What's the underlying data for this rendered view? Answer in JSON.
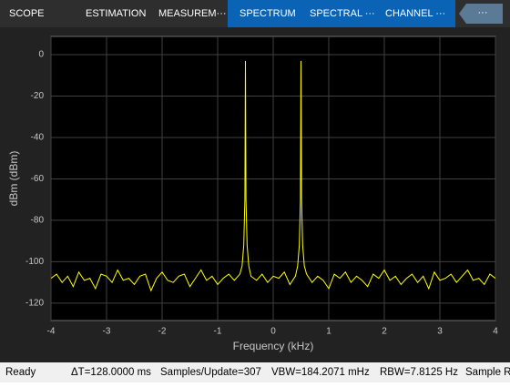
{
  "toolbar": {
    "tabs": [
      "SCOPE",
      "ESTIMATION",
      "MEASUREM···",
      "SPECTRUM",
      "SPECTRAL ···",
      "CHANNEL ···"
    ],
    "more": "···"
  },
  "chart_data": {
    "type": "line",
    "xlabel": "Frequency (kHz)",
    "ylabel": "dBm (dBm)",
    "xlim": [
      -4,
      4
    ],
    "ylim": [
      -128.4,
      8.8
    ],
    "xticks": [
      -4,
      -3,
      -2,
      -1,
      0,
      1,
      2,
      3,
      4
    ],
    "yticks": [
      0,
      -20,
      -40,
      -60,
      -80,
      -100,
      -120
    ],
    "grid": true,
    "series": [
      {
        "color": "#ffff00",
        "x": [
          -4.0,
          -3.9,
          -3.8,
          -3.7,
          -3.6,
          -3.5,
          -3.4,
          -3.3,
          -3.2,
          -3.1,
          -3.0,
          -2.9,
          -2.8,
          -2.7,
          -2.6,
          -2.5,
          -2.4,
          -2.3,
          -2.2,
          -2.1,
          -2.0,
          -1.9,
          -1.8,
          -1.7,
          -1.6,
          -1.5,
          -1.4,
          -1.3,
          -1.2,
          -1.1,
          -1.0,
          -0.9,
          -0.8,
          -0.7,
          -0.6,
          -0.56,
          -0.53,
          -0.51,
          -0.5,
          -0.49,
          -0.47,
          -0.44,
          -0.4,
          -0.3,
          -0.2,
          -0.1,
          0,
          0.1,
          0.2,
          0.3,
          0.4,
          0.44,
          0.47,
          0.49,
          0.5,
          0.51,
          0.53,
          0.56,
          0.6,
          0.7,
          0.8,
          0.9,
          1.0,
          1.1,
          1.2,
          1.3,
          1.4,
          1.5,
          1.6,
          1.7,
          1.8,
          1.9,
          2.0,
          2.1,
          2.2,
          2.3,
          2.4,
          2.5,
          2.6,
          2.7,
          2.8,
          2.9,
          3.0,
          3.1,
          3.2,
          3.3,
          3.4,
          3.5,
          3.6,
          3.7,
          3.8,
          3.9,
          4.0
        ],
        "values": [
          -108,
          -106,
          -110,
          -107,
          -112,
          -105,
          -109,
          -108,
          -113,
          -106,
          -107,
          -110,
          -104,
          -109,
          -108,
          -111,
          -107,
          -106,
          -114,
          -108,
          -105,
          -109,
          -110,
          -107,
          -106,
          -112,
          -108,
          -104,
          -109,
          -107,
          -111,
          -108,
          -106,
          -109,
          -106,
          -102,
          -92,
          -70,
          -3,
          -70,
          -92,
          -102,
          -107,
          -109,
          -106,
          -110,
          -107,
          -108,
          -105,
          -111,
          -107,
          -102,
          -92,
          -70,
          -3,
          -70,
          -92,
          -102,
          -106,
          -110,
          -107,
          -109,
          -113,
          -106,
          -108,
          -105,
          -110,
          -107,
          -109,
          -112,
          -106,
          -108,
          -104,
          -109,
          -107,
          -111,
          -108,
          -106,
          -110,
          -107,
          -113,
          -105,
          -109,
          -108,
          -106,
          -110,
          -107,
          -104,
          -109,
          -108,
          -111,
          -106,
          -108
        ]
      }
    ]
  },
  "status": [
    "Ready",
    "ΔT=128.0000 ms",
    "Samples/Update=307",
    "VBW=184.2071 mHz",
    "RBW=7.8125 Hz",
    "Sample R"
  ]
}
